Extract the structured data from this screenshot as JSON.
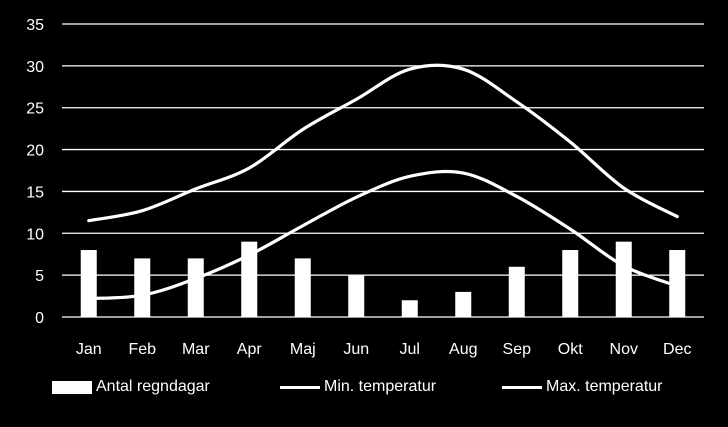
{
  "chart_data": {
    "type": "bar",
    "categories": [
      "Jan",
      "Feb",
      "Mar",
      "Apr",
      "Maj",
      "Jun",
      "Jul",
      "Aug",
      "Sep",
      "Okt",
      "Nov",
      "Dec"
    ],
    "ylim": [
      0,
      35
    ],
    "yticks": [
      0,
      5,
      10,
      15,
      20,
      25,
      30,
      35
    ],
    "grid": true,
    "legend_position": "bottom",
    "colors": {
      "background": "#000000",
      "foreground": "#ffffff"
    },
    "series": [
      {
        "name": "Antal regndagar",
        "type": "bar",
        "values": [
          8,
          7,
          7,
          9,
          7,
          5,
          2,
          3,
          6,
          8,
          9,
          8
        ]
      },
      {
        "name": "Min. temperatur",
        "type": "line",
        "values": [
          2.2,
          2.6,
          4.6,
          7.4,
          10.9,
          14.3,
          16.8,
          17.2,
          14.4,
          10.5,
          6.1,
          3.7
        ]
      },
      {
        "name": "Max. temperatur",
        "type": "line",
        "values": [
          11.5,
          12.7,
          15.3,
          17.8,
          22.4,
          26.0,
          29.6,
          29.6,
          25.7,
          20.9,
          15.4,
          12.0
        ]
      }
    ]
  }
}
